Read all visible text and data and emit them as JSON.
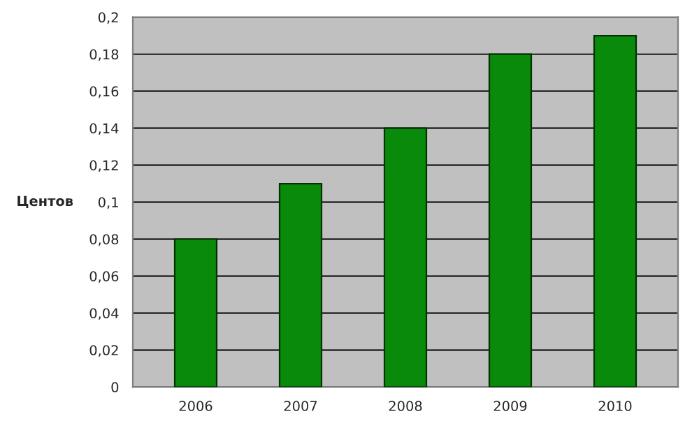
{
  "chart_data": {
    "type": "bar",
    "ylabel": "Центов",
    "categories": [
      "2006",
      "2007",
      "2008",
      "2009",
      "2010"
    ],
    "values": [
      0.08,
      0.11,
      0.14,
      0.18,
      0.19
    ],
    "color": "#0a8a0a",
    "ylim": [
      0,
      0.2
    ],
    "yticks": [
      0,
      {
        "value": 0.02,
        "label": "0,02"
      },
      {
        "value": 0.04,
        "label": "0,04"
      },
      {
        "value": 0.06,
        "label": "0,06"
      },
      {
        "value": 0.08,
        "label": "0,08"
      },
      {
        "value": 0.1,
        "label": "0,1"
      },
      {
        "value": 0.12,
        "label": "0,12"
      },
      {
        "value": 0.14,
        "label": "0,14"
      },
      {
        "value": 0.16,
        "label": "0,16"
      },
      {
        "value": 0.18,
        "label": "0,18"
      },
      {
        "value": 0.2,
        "label": "0,2"
      }
    ],
    "grid": "y"
  }
}
